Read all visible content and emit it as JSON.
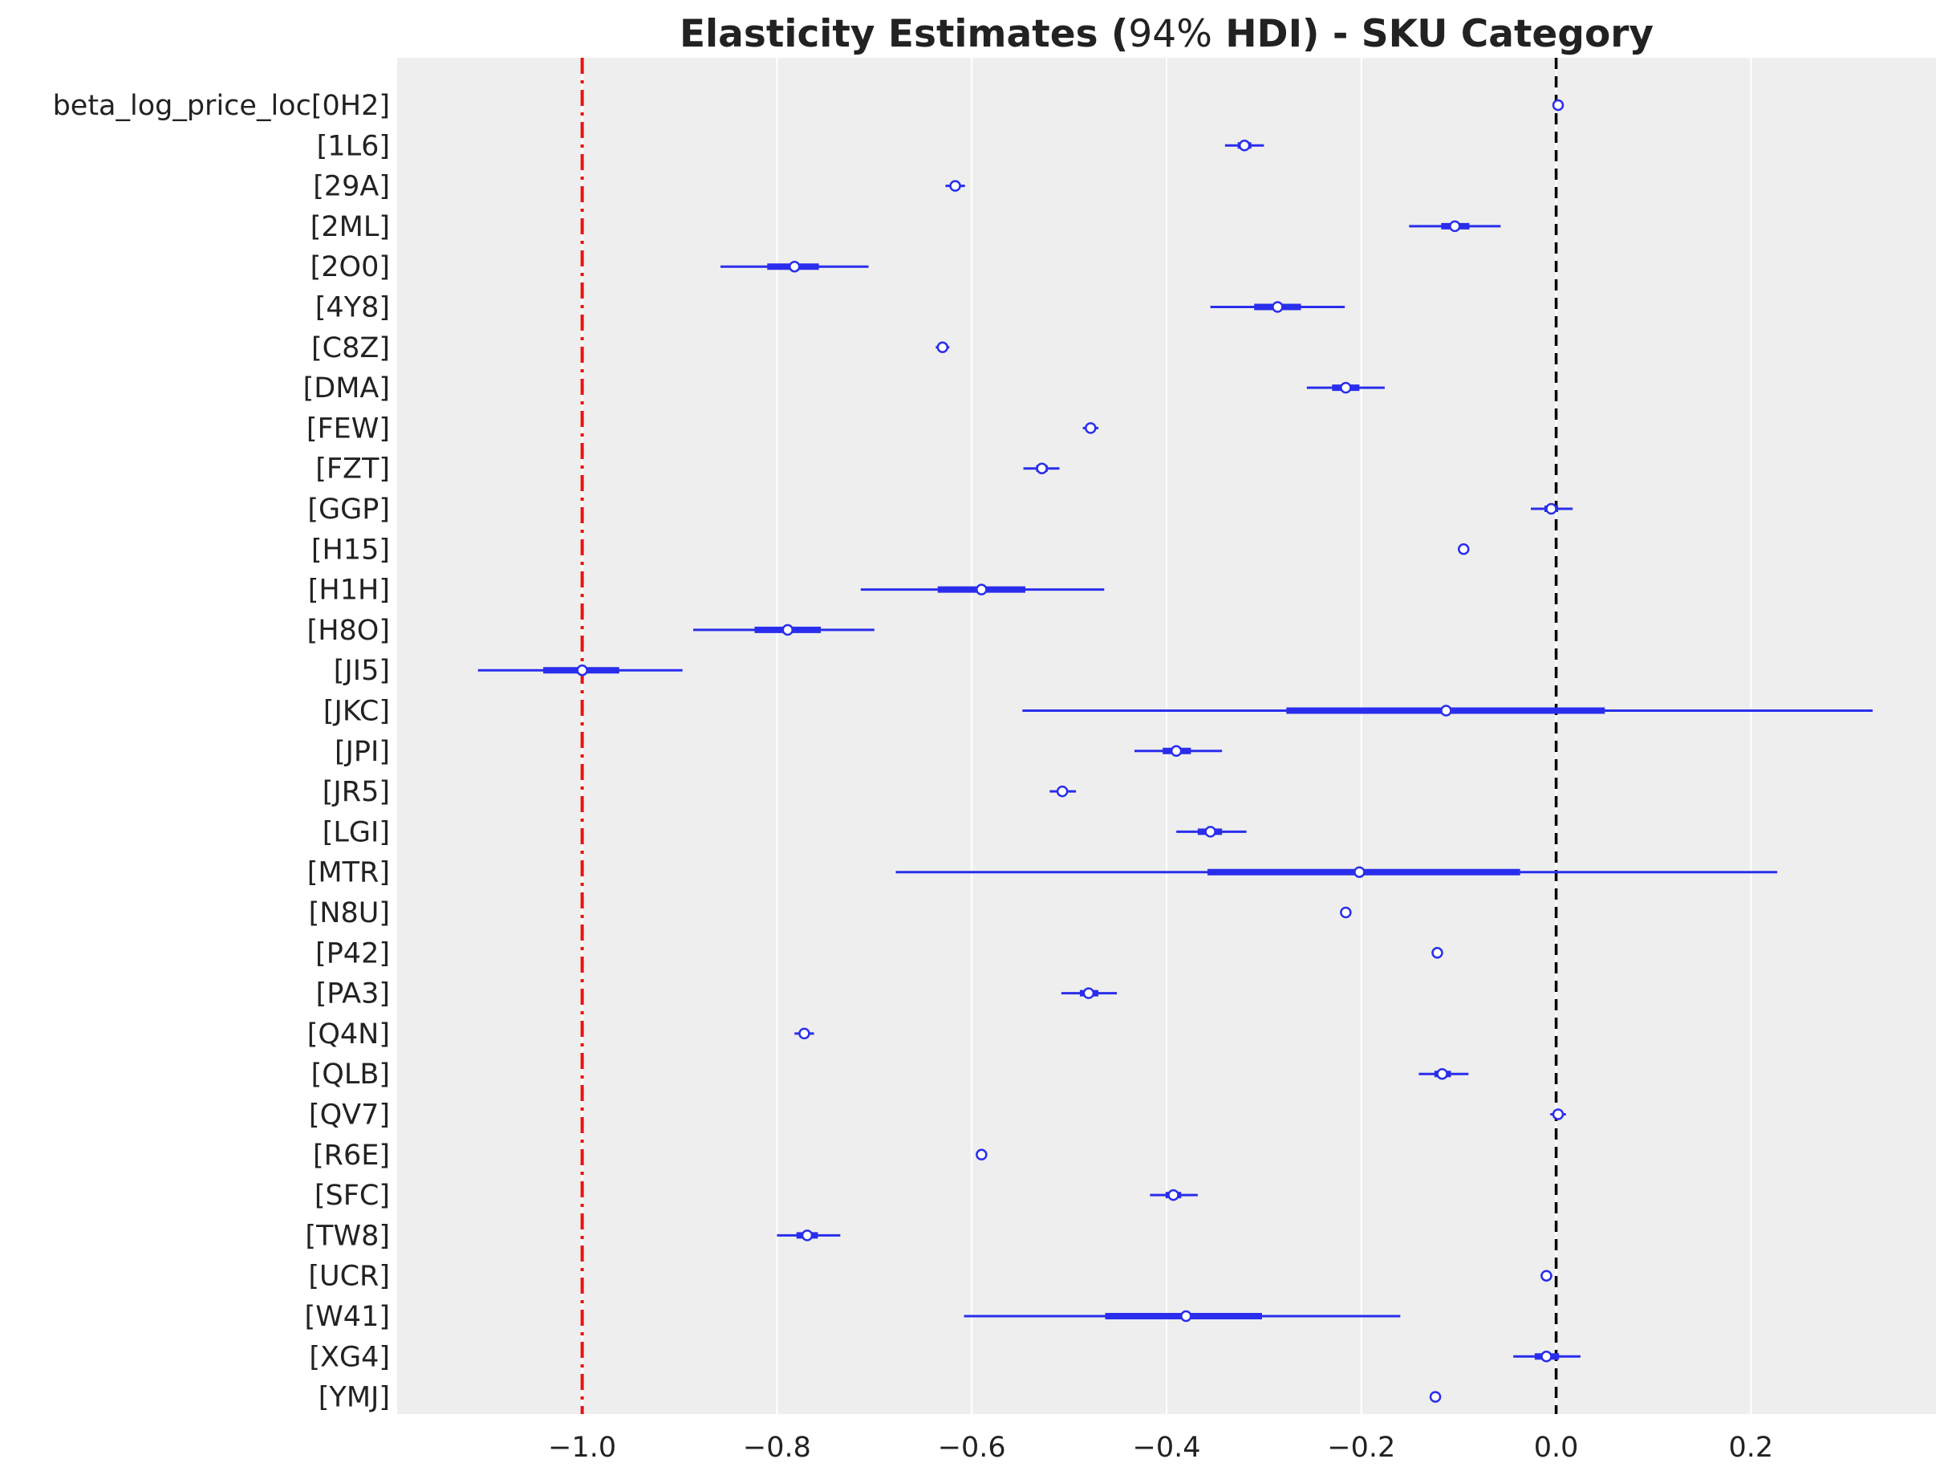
{
  "chart_data": {
    "type": "forest",
    "title": {
      "bold_prefix": "Elasticity Estimates (",
      "light_part": "94%",
      "bold_suffix": " HDI) - SKU Category"
    },
    "xlabel": "",
    "ylabel": "",
    "xlim": [
      -1.19,
      0.39
    ],
    "xticks": [
      -1.0,
      -0.8,
      -0.6,
      -0.4,
      -0.2,
      0.0,
      0.2
    ],
    "xtick_labels": [
      "−1.0",
      "−0.8",
      "−0.6",
      "−0.4",
      "−0.2",
      "0.0",
      "0.2"
    ],
    "grid": "vertical",
    "reference_lines": [
      {
        "value": -1.0,
        "color": "#ee1111",
        "style": "dashdot"
      },
      {
        "value": 0.0,
        "color": "#000000",
        "style": "dashed"
      }
    ],
    "series_color": "#2a2eec",
    "background_color": "#eeeeee",
    "rows": [
      {
        "label": "beta_log_price_loc[0H2]",
        "mean": 0.002,
        "hdi": [
          -0.001,
          0.004
        ],
        "iqr": [
          0.001,
          0.003
        ]
      },
      {
        "label": "[1L6]",
        "mean": -0.32,
        "hdi": [
          -0.34,
          -0.3
        ],
        "iqr": [
          -0.327,
          -0.313
        ]
      },
      {
        "label": "[29A]",
        "mean": -0.617,
        "hdi": [
          -0.627,
          -0.607
        ],
        "iqr": [
          -0.62,
          -0.613
        ]
      },
      {
        "label": "[2ML]",
        "mean": -0.104,
        "hdi": [
          -0.151,
          -0.057
        ],
        "iqr": [
          -0.118,
          -0.089
        ]
      },
      {
        "label": "[2O0]",
        "mean": -0.782,
        "hdi": [
          -0.858,
          -0.706
        ],
        "iqr": [
          -0.81,
          -0.757
        ]
      },
      {
        "label": "[4Y8]",
        "mean": -0.286,
        "hdi": [
          -0.355,
          -0.217
        ],
        "iqr": [
          -0.31,
          -0.262
        ]
      },
      {
        "label": "[C8Z]",
        "mean": -0.63,
        "hdi": [
          -0.637,
          -0.623
        ],
        "iqr": [
          -0.633,
          -0.627
        ]
      },
      {
        "label": "[DMA]",
        "mean": -0.216,
        "hdi": [
          -0.256,
          -0.176
        ],
        "iqr": [
          -0.23,
          -0.202
        ]
      },
      {
        "label": "[FEW]",
        "mean": -0.478,
        "hdi": [
          -0.486,
          -0.47
        ],
        "iqr": [
          -0.481,
          -0.475
        ]
      },
      {
        "label": "[FZT]",
        "mean": -0.528,
        "hdi": [
          -0.547,
          -0.51
        ],
        "iqr": [
          -0.534,
          -0.522
        ]
      },
      {
        "label": "[GGP]",
        "mean": -0.005,
        "hdi": [
          -0.026,
          0.017
        ],
        "iqr": [
          -0.012,
          0.002
        ]
      },
      {
        "label": "[H15]",
        "mean": -0.095,
        "hdi": [
          -0.099,
          -0.091
        ],
        "iqr": [
          -0.097,
          -0.093
        ]
      },
      {
        "label": "[H1H]",
        "mean": -0.59,
        "hdi": [
          -0.714,
          -0.464
        ],
        "iqr": [
          -0.635,
          -0.545
        ]
      },
      {
        "label": "[H8O]",
        "mean": -0.789,
        "hdi": [
          -0.886,
          -0.7
        ],
        "iqr": [
          -0.823,
          -0.755
        ]
      },
      {
        "label": "[JI5]",
        "mean": -1.0,
        "hdi": [
          -1.107,
          -0.897
        ],
        "iqr": [
          -1.04,
          -0.962
        ]
      },
      {
        "label": "[JKC]",
        "mean": -0.113,
        "hdi": [
          -0.548,
          0.325
        ],
        "iqr": [
          -0.277,
          0.05
        ]
      },
      {
        "label": "[JPI]",
        "mean": -0.39,
        "hdi": [
          -0.433,
          -0.343
        ],
        "iqr": [
          -0.404,
          -0.375
        ]
      },
      {
        "label": "[JR5]",
        "mean": -0.507,
        "hdi": [
          -0.52,
          -0.493
        ],
        "iqr": [
          -0.512,
          -0.502
        ]
      },
      {
        "label": "[LGI]",
        "mean": -0.355,
        "hdi": [
          -0.39,
          -0.318
        ],
        "iqr": [
          -0.368,
          -0.343
        ]
      },
      {
        "label": "[MTR]",
        "mean": -0.202,
        "hdi": [
          -0.678,
          0.227
        ],
        "iqr": [
          -0.358,
          -0.037
        ]
      },
      {
        "label": "[N8U]",
        "mean": -0.216,
        "hdi": [
          -0.219,
          -0.213
        ],
        "iqr": [
          -0.218,
          -0.214
        ]
      },
      {
        "label": "[P42]",
        "mean": -0.122,
        "hdi": [
          -0.125,
          -0.119
        ],
        "iqr": [
          -0.124,
          -0.12
        ]
      },
      {
        "label": "[PA3]",
        "mean": -0.48,
        "hdi": [
          -0.508,
          -0.451
        ],
        "iqr": [
          -0.489,
          -0.47
        ]
      },
      {
        "label": "[Q4N]",
        "mean": -0.772,
        "hdi": [
          -0.782,
          -0.762
        ],
        "iqr": [
          -0.775,
          -0.768
        ]
      },
      {
        "label": "[QLB]",
        "mean": -0.117,
        "hdi": [
          -0.141,
          -0.09
        ],
        "iqr": [
          -0.125,
          -0.108
        ]
      },
      {
        "label": "[QV7]",
        "mean": 0.002,
        "hdi": [
          -0.006,
          0.01
        ],
        "iqr": [
          -0.001,
          0.005
        ]
      },
      {
        "label": "[R6E]",
        "mean": -0.59,
        "hdi": [
          -0.594,
          -0.586
        ],
        "iqr": [
          -0.592,
          -0.588
        ]
      },
      {
        "label": "[SFC]",
        "mean": -0.393,
        "hdi": [
          -0.417,
          -0.368
        ],
        "iqr": [
          -0.401,
          -0.385
        ]
      },
      {
        "label": "[TW8]",
        "mean": -0.769,
        "hdi": [
          -0.8,
          -0.735
        ],
        "iqr": [
          -0.78,
          -0.758
        ]
      },
      {
        "label": "[UCR]",
        "mean": -0.01,
        "hdi": [
          -0.016,
          -0.004
        ],
        "iqr": [
          -0.012,
          -0.008
        ]
      },
      {
        "label": "[W41]",
        "mean": -0.38,
        "hdi": [
          -0.608,
          -0.16
        ],
        "iqr": [
          -0.463,
          -0.302
        ]
      },
      {
        "label": "[XG4]",
        "mean": -0.01,
        "hdi": [
          -0.044,
          0.025
        ],
        "iqr": [
          -0.022,
          0.003
        ]
      },
      {
        "label": "[YMJ]",
        "mean": -0.124,
        "hdi": [
          -0.127,
          -0.121
        ],
        "iqr": [
          -0.126,
          -0.122
        ]
      }
    ]
  }
}
